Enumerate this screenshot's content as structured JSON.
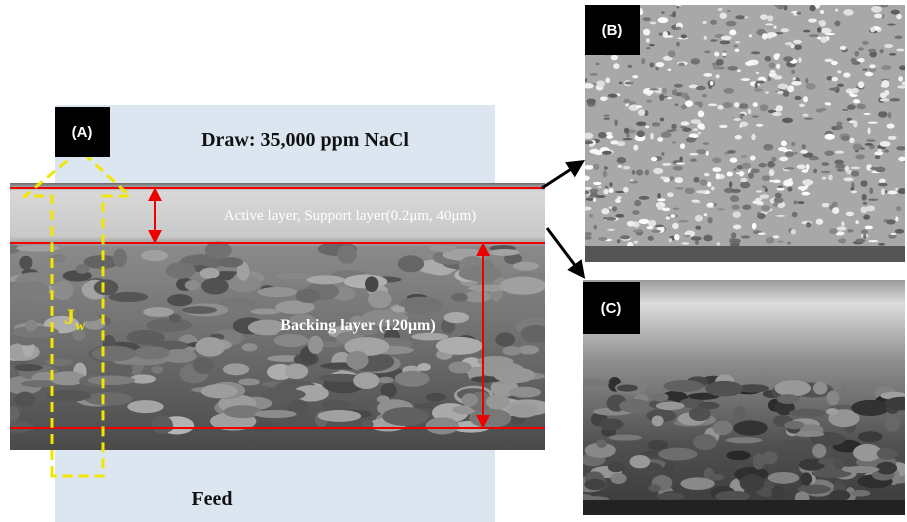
{
  "panels": {
    "a": {
      "label": "(A)",
      "draw": "Draw: 35,000 ppm NaCl",
      "active_layer": "Active layer, Support layer(0.2μm, 40μm)",
      "backing_layer": "Backing layer (120μm)",
      "flux": {
        "main": "J",
        "sub": "w"
      },
      "feed": "Feed"
    },
    "b": {
      "label": "(B)"
    },
    "c": {
      "label": "(C)"
    }
  }
}
